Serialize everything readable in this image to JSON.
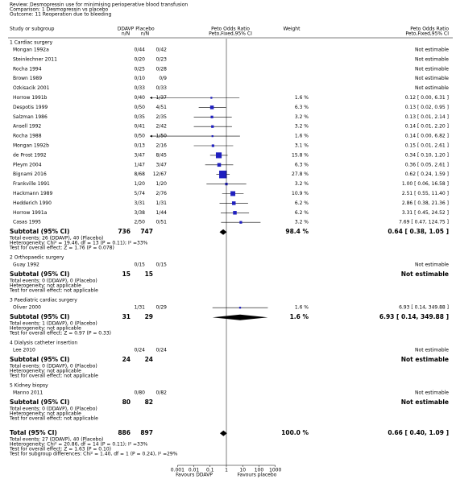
{
  "header": {
    "review": "Review:  Desmopressin use for minimising perioperative blood transfusion",
    "comparison": "Comparison:  1 Desmopressin vs placebo",
    "outcome": "Outcome:  11 Reoperation due to bleeding"
  },
  "columns": {
    "study": "Study or subgroup",
    "ddavp": "DDAVP",
    "ddavp_n": "n/N",
    "placebo": "Placebo",
    "placebo_n": "n/N",
    "effect": "Peto Odds Ratio",
    "effect_method": "Peto,Fixed,95% CI",
    "weight": "Weight",
    "effect2": "Peto Odds Ratio",
    "effect2_method": "Peto,Fixed,95% CI"
  },
  "groups": [
    {
      "title": "1 Cardiac surgery",
      "studies": [
        {
          "name": "Mongan 1992a",
          "ddavp": "0/44",
          "placebo": "0/42",
          "result": "Not estimable"
        },
        {
          "name": "Steinlechner 2011",
          "ddavp": "0/20",
          "placebo": "0/23",
          "result": "Not estimable"
        },
        {
          "name": "Rocha 1994",
          "ddavp": "0/25",
          "placebo": "0/28",
          "result": "Not estimable"
        },
        {
          "name": "Brown 1989",
          "ddavp": "0/10",
          "placebo": "0/9",
          "result": "Not estimable"
        },
        {
          "name": "Ozkisacik 2001",
          "ddavp": "0/33",
          "placebo": "0/33",
          "result": "Not estimable"
        },
        {
          "name": "Horrow 1991b",
          "ddavp": "0/40",
          "placebo": "1/37",
          "weight": {
            "value": 1.6,
            "label": "1.6 %"
          },
          "estimate": 0.12,
          "ci": [
            0.0,
            6.31
          ],
          "result": "0.12 [ 0.00, 6.31 ]"
        },
        {
          "name": "Despotis 1999",
          "ddavp": "0/50",
          "placebo": "4/51",
          "weight": {
            "value": 6.3,
            "label": "6.3 %"
          },
          "estimate": 0.13,
          "ci": [
            0.02,
            0.95
          ],
          "result": "0.13 [ 0.02, 0.95 ]"
        },
        {
          "name": "Salzman 1986",
          "ddavp": "0/35",
          "placebo": "2/35",
          "weight": {
            "value": 3.2,
            "label": "3.2 %"
          },
          "estimate": 0.13,
          "ci": [
            0.01,
            2.14
          ],
          "result": "0.13 [ 0.01, 2.14 ]"
        },
        {
          "name": "Ansell 1992",
          "ddavp": "0/41",
          "placebo": "2/42",
          "weight": {
            "value": 3.2,
            "label": "3.2 %"
          },
          "estimate": 0.14,
          "ci": [
            0.01,
            2.2
          ],
          "result": "0.14 [ 0.01, 2.20 ]"
        },
        {
          "name": "Rocha 1988",
          "ddavp": "0/50",
          "placebo": "1/50",
          "weight": {
            "value": 1.6,
            "label": "1.6 %"
          },
          "estimate": 0.14,
          "ci": [
            0.0,
            6.82
          ],
          "result": "0.14 [ 0.00, 6.82 ]"
        },
        {
          "name": "Mongan 1992b",
          "ddavp": "0/13",
          "placebo": "2/16",
          "weight": {
            "value": 3.1,
            "label": "3.1 %"
          },
          "estimate": 0.15,
          "ci": [
            0.01,
            2.61
          ],
          "result": "0.15 [ 0.01, 2.61 ]"
        },
        {
          "name": "de Prost 1992",
          "ddavp": "3/47",
          "placebo": "8/45",
          "weight": {
            "value": 15.8,
            "label": "15.8 %"
          },
          "estimate": 0.34,
          "ci": [
            0.1,
            1.2
          ],
          "result": "0.34 [ 0.10, 1.20 ]"
        },
        {
          "name": "Pleym 2004",
          "ddavp": "1/47",
          "placebo": "3/47",
          "weight": {
            "value": 6.3,
            "label": "6.3 %"
          },
          "estimate": 0.36,
          "ci": [
            0.05,
            2.61
          ],
          "result": "0.36 [ 0.05, 2.61 ]"
        },
        {
          "name": "Bignami 2016",
          "ddavp": "8/68",
          "placebo": "12/67",
          "weight": {
            "value": 27.8,
            "label": "27.8 %"
          },
          "estimate": 0.62,
          "ci": [
            0.24,
            1.59
          ],
          "result": "0.62 [ 0.24, 1.59 ]"
        },
        {
          "name": "Frankville 1991",
          "ddavp": "1/20",
          "placebo": "1/20",
          "weight": {
            "value": 3.2,
            "label": "3.2 %"
          },
          "estimate": 1.0,
          "ci": [
            0.06,
            16.58
          ],
          "result": "1.00 [ 0.06, 16.58 ]"
        },
        {
          "name": "Hackmann 1989",
          "ddavp": "5/74",
          "placebo": "2/76",
          "weight": {
            "value": 10.9,
            "label": "10.9 %"
          },
          "estimate": 2.51,
          "ci": [
            0.55,
            11.4
          ],
          "result": "2.51 [ 0.55, 11.40 ]"
        },
        {
          "name": "Hedderich 1990",
          "ddavp": "3/31",
          "placebo": "1/31",
          "weight": {
            "value": 6.2,
            "label": "6.2 %"
          },
          "estimate": 2.86,
          "ci": [
            0.38,
            21.36
          ],
          "result": "2.86 [ 0.38, 21.36 ]"
        },
        {
          "name": "Horrow 1991a",
          "ddavp": "3/38",
          "placebo": "1/44",
          "weight": {
            "value": 6.2,
            "label": "6.2 %"
          },
          "estimate": 3.31,
          "ci": [
            0.45,
            24.52
          ],
          "result": "3.31 [ 0.45, 24.52 ]"
        },
        {
          "name": "Casas 1995",
          "ddavp": "2/50",
          "placebo": "0/51",
          "weight": {
            "value": 3.2,
            "label": "3.2 %"
          },
          "estimate": 7.69,
          "ci": [
            0.47,
            124.75
          ],
          "result": "7.69 [ 0.47, 124.75 ]"
        }
      ],
      "subtotal": {
        "label": "Subtotal (95% CI)",
        "ddavp": 736,
        "placebo": 747,
        "weight": {
          "value": 98.4,
          "label": "98.4 %"
        },
        "estimate": 0.64,
        "ci": [
          0.38,
          1.05
        ],
        "result": "0.64 [ 0.38, 1.05 ]"
      },
      "notes": [
        "Total events: 26 (DDAVP), 40 (Placebo)",
        "Heterogeneity: Chi² = 19.46, df = 13 (P = 0.11); I² =33%",
        "Test for overall effect: Z = 1.76 (P = 0.078)"
      ]
    },
    {
      "title": "2 Orthopaedic surgery",
      "studies": [
        {
          "name": "Guay 1992",
          "ddavp": "0/15",
          "placebo": "0/15",
          "result": "Not estimable"
        }
      ],
      "subtotal": {
        "label": "Subtotal (95% CI)",
        "ddavp": 15,
        "placebo": 15,
        "result": "Not estimable"
      },
      "notes": [
        "Total events: 0 (DDAVP), 0 (Placebo)",
        "Heterogeneity: not applicable",
        "Test for overall effect: not applicable"
      ]
    },
    {
      "title": "3 Paediatric cardiac surgery",
      "studies": [
        {
          "name": "Oliver 2000",
          "ddavp": "1/31",
          "placebo": "0/29",
          "weight": {
            "value": 1.6,
            "label": "1.6 %"
          },
          "estimate": 6.93,
          "ci": [
            0.14,
            349.88
          ],
          "result": "6.93 [ 0.14, 349.88 ]"
        }
      ],
      "subtotal": {
        "label": "Subtotal (95% CI)",
        "ddavp": 31,
        "placebo": 29,
        "weight": {
          "value": 1.6,
          "label": "1.6 %"
        },
        "estimate": 6.93,
        "ci": [
          0.14,
          349.88
        ],
        "result": "6.93 [ 0.14, 349.88 ]"
      },
      "notes": [
        "Total events: 1 (DDAVP), 0 (Placebo)",
        "Heterogeneity: not applicable",
        "Test for overall effect: Z = 0.97 (P = 0.33)"
      ]
    },
    {
      "title": "4 Dialysis catheter insertion",
      "studies": [
        {
          "name": "Lee 2010",
          "ddavp": "0/24",
          "placebo": "0/24",
          "result": "Not estimable"
        }
      ],
      "subtotal": {
        "label": "Subtotal (95% CI)",
        "ddavp": 24,
        "placebo": 24,
        "result": "Not estimable"
      },
      "notes": [
        "Total events: 0 (DDAVP), 0 (Placebo)",
        "Heterogeneity: not applicable",
        "Test for overall effect: not applicable"
      ]
    },
    {
      "title": "5 Kidney biopsy",
      "studies": [
        {
          "name": "Manno 2011",
          "ddavp": "0/80",
          "placebo": "0/82",
          "result": "Not estimable"
        }
      ],
      "subtotal": {
        "label": "Subtotal (95% CI)",
        "ddavp": 80,
        "placebo": 82,
        "result": "Not estimable"
      },
      "notes": [
        "Total events: 0 (DDAVP), 0 (Placebo)",
        "Heterogeneity: not applicable",
        "Test for overall effect: not applicable"
      ]
    }
  ],
  "total": {
    "label": "Total (95% CI)",
    "ddavp": 886,
    "placebo": 897,
    "weight": {
      "value": 100.0,
      "label": "100.0 %"
    },
    "estimate": 0.66,
    "ci": [
      0.4,
      1.09
    ],
    "result": "0.66 [ 0.40, 1.09 ]",
    "notes": [
      "Total events: 27 (DDAVP), 40 (Placebo)",
      "Heterogeneity: Chi² = 20.86, df = 14 (P = 0.11); I² =33%",
      "Test for overall effect: Z = 1.63 (P = 0.10)",
      "Test for subgroup differences: Chi² = 1.40, df = 1 (P = 0.24), I² =29%"
    ]
  },
  "axis": {
    "xlim": [
      2e-05,
      50000
    ],
    "xticks": [
      0.001,
      0.01,
      0.1,
      1,
      10,
      100,
      1000
    ],
    "favours_left": "Favours DDAVP",
    "favours_right": "Favours placebo"
  }
}
